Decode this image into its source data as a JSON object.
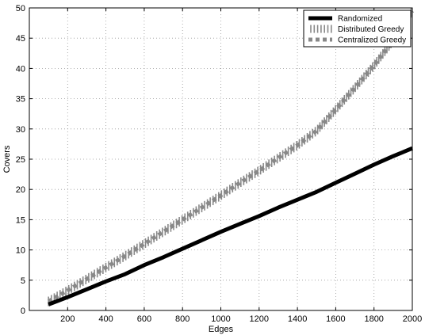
{
  "chart_data": {
    "type": "line",
    "title": "",
    "xlabel": "Edges",
    "ylabel": "Covers",
    "xlim": [
      0,
      2000
    ],
    "ylim": [
      0,
      50
    ],
    "xticks": [
      200,
      400,
      600,
      800,
      1000,
      1200,
      1400,
      1600,
      1800,
      2000
    ],
    "yticks": [
      0,
      5,
      10,
      15,
      20,
      25,
      30,
      35,
      40,
      45,
      50
    ],
    "grid": true,
    "legend_position": "top-right",
    "series": [
      {
        "name": "Randomized",
        "style": "solid",
        "color": "#000000",
        "x": [
          100,
          200,
          300,
          400,
          500,
          600,
          700,
          800,
          900,
          1000,
          1100,
          1200,
          1300,
          1400,
          1500,
          1600,
          1700,
          1800,
          1900,
          2000
        ],
        "y": [
          1.0,
          2.2,
          3.5,
          4.8,
          6.0,
          7.5,
          8.8,
          10.2,
          11.6,
          13.0,
          14.3,
          15.6,
          17.0,
          18.3,
          19.6,
          21.1,
          22.6,
          24.1,
          25.5,
          26.8
        ]
      },
      {
        "name": "Distributed Greedy",
        "style": "vbars",
        "color": "#888888",
        "x": [
          100,
          200,
          300,
          400,
          500,
          600,
          700,
          800,
          900,
          1000,
          1100,
          1200,
          1300,
          1400,
          1500,
          1600,
          1700,
          1800,
          1900,
          2000
        ],
        "y": [
          1.5,
          3.3,
          5.2,
          7.1,
          9.0,
          11.0,
          13.0,
          15.0,
          17.0,
          19.0,
          21.1,
          23.1,
          25.2,
          27.3,
          29.7,
          33.2,
          36.8,
          40.5,
          44.6,
          49.5
        ]
      },
      {
        "name": "Centralized Greedy",
        "style": "dashed",
        "color": "#888888",
        "x": [
          100,
          200,
          300,
          400,
          500,
          600,
          700,
          800,
          900,
          1000,
          1100,
          1200,
          1300,
          1400,
          1500,
          1600,
          1700,
          1800,
          1900,
          2000
        ],
        "y": [
          1.5,
          3.3,
          5.2,
          7.1,
          9.0,
          11.0,
          13.0,
          15.0,
          17.0,
          19.0,
          21.1,
          23.1,
          25.2,
          27.3,
          29.7,
          33.2,
          36.8,
          40.5,
          44.6,
          49.5
        ]
      }
    ]
  }
}
